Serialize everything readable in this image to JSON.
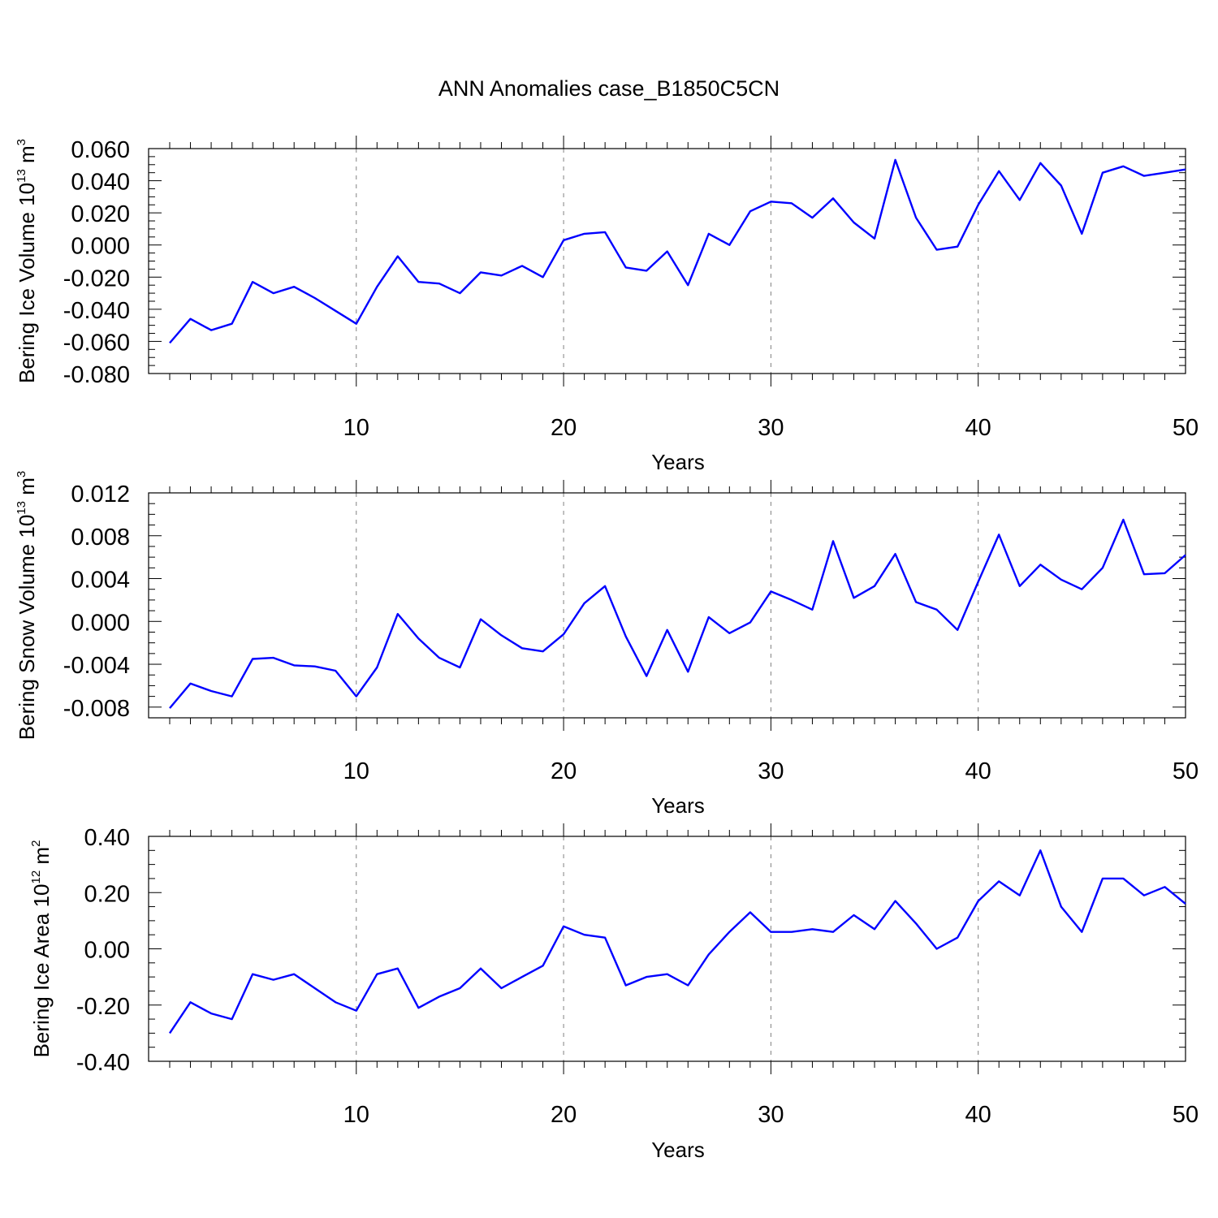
{
  "title": "ANN Anomalies case_B1850C5CN",
  "colors": {
    "line": "#0000ff",
    "axis": "#000000",
    "grid": "#808080"
  },
  "chart_data": [
    {
      "type": "line",
      "xlabel": "Years",
      "ylabel": {
        "main": "Bering Ice Volume 10",
        "sup": "13",
        "unit": " m",
        "unit_sup": "3"
      },
      "xlim": [
        1,
        50
      ],
      "ylim": [
        -0.08,
        0.06
      ],
      "x_ticks": [
        10,
        20,
        30,
        40,
        50
      ],
      "y_ticks": [
        -0.08,
        -0.06,
        -0.04,
        -0.02,
        0.0,
        0.02,
        0.04,
        0.06
      ],
      "y_tick_labels": [
        "-0.080",
        "-0.060",
        "-0.040",
        "-0.020",
        "0.000",
        "0.020",
        "0.040",
        "0.060"
      ],
      "y_minor_step": 0.005,
      "grid": "vertical dashed at major x ticks",
      "x": [
        1,
        2,
        3,
        4,
        5,
        6,
        7,
        8,
        9,
        10,
        11,
        12,
        13,
        14,
        15,
        16,
        17,
        18,
        19,
        20,
        21,
        22,
        23,
        24,
        25,
        26,
        27,
        28,
        29,
        30,
        31,
        32,
        33,
        34,
        35,
        36,
        37,
        38,
        39,
        40,
        41,
        42,
        43,
        44,
        45,
        46,
        47,
        48,
        49,
        50
      ],
      "values": [
        -0.061,
        -0.046,
        -0.053,
        -0.049,
        -0.023,
        -0.03,
        -0.026,
        -0.033,
        -0.041,
        -0.049,
        -0.026,
        -0.007,
        -0.023,
        -0.024,
        -0.03,
        -0.017,
        -0.019,
        -0.013,
        -0.02,
        0.003,
        0.007,
        0.008,
        -0.014,
        -0.016,
        -0.004,
        -0.025,
        0.007,
        0.0,
        0.021,
        0.027,
        0.026,
        0.017,
        0.029,
        0.014,
        0.004,
        0.053,
        0.017,
        -0.003,
        -0.001,
        0.025,
        0.046,
        0.028,
        0.051,
        0.037,
        0.007,
        0.045,
        0.049,
        0.043,
        0.045,
        0.047
      ]
    },
    {
      "type": "line",
      "xlabel": "Years",
      "ylabel": {
        "main": "Bering Snow Volume 10",
        "sup": "13",
        "unit": " m",
        "unit_sup": "3"
      },
      "xlim": [
        1,
        50
      ],
      "ylim": [
        -0.009,
        0.012
      ],
      "x_ticks": [
        10,
        20,
        30,
        40,
        50
      ],
      "y_ticks": [
        -0.008,
        -0.004,
        0.0,
        0.004,
        0.008,
        0.012
      ],
      "y_tick_labels": [
        "-0.008",
        "-0.004",
        "0.000",
        "0.004",
        "0.008",
        "0.012"
      ],
      "y_minor_step": 0.001,
      "grid": "vertical dashed at major x ticks",
      "x": [
        1,
        2,
        3,
        4,
        5,
        6,
        7,
        8,
        9,
        10,
        11,
        12,
        13,
        14,
        15,
        16,
        17,
        18,
        19,
        20,
        21,
        22,
        23,
        24,
        25,
        26,
        27,
        28,
        29,
        30,
        31,
        32,
        33,
        34,
        35,
        36,
        37,
        38,
        39,
        40,
        41,
        42,
        43,
        44,
        45,
        46,
        47,
        48,
        49,
        50
      ],
      "values": [
        -0.0081,
        -0.0058,
        -0.0065,
        -0.007,
        -0.0035,
        -0.0034,
        -0.0041,
        -0.0042,
        -0.0046,
        -0.007,
        -0.0043,
        0.0007,
        -0.0016,
        -0.0034,
        -0.0043,
        0.0002,
        -0.0013,
        -0.0025,
        -0.0028,
        -0.0012,
        0.0017,
        0.0033,
        -0.0014,
        -0.0051,
        -0.0008,
        -0.0047,
        0.0004,
        -0.0011,
        -0.0001,
        0.0028,
        0.002,
        0.0011,
        0.0075,
        0.0022,
        0.0033,
        0.0063,
        0.0018,
        0.0011,
        -0.0008,
        0.0037,
        0.0081,
        0.0033,
        0.0053,
        0.0039,
        0.003,
        0.005,
        0.0095,
        0.0044,
        0.0045,
        0.0062
      ]
    },
    {
      "type": "line",
      "xlabel": "Years",
      "ylabel": {
        "main": "Bering Ice Area 10",
        "sup": "12",
        "unit": " m",
        "unit_sup": "2"
      },
      "xlim": [
        1,
        50
      ],
      "ylim": [
        -0.4,
        0.4
      ],
      "x_ticks": [
        10,
        20,
        30,
        40,
        50
      ],
      "y_ticks": [
        -0.4,
        -0.2,
        0.0,
        0.2,
        0.4
      ],
      "y_tick_labels": [
        "-0.40",
        "-0.20",
        "0.00",
        "0.20",
        "0.40"
      ],
      "y_minor_step": 0.05,
      "grid": "vertical dashed at major x ticks",
      "x": [
        1,
        2,
        3,
        4,
        5,
        6,
        7,
        8,
        9,
        10,
        11,
        12,
        13,
        14,
        15,
        16,
        17,
        18,
        19,
        20,
        21,
        22,
        23,
        24,
        25,
        26,
        27,
        28,
        29,
        30,
        31,
        32,
        33,
        34,
        35,
        36,
        37,
        38,
        39,
        40,
        41,
        42,
        43,
        44,
        45,
        46,
        47,
        48,
        49,
        50
      ],
      "values": [
        -0.3,
        -0.19,
        -0.23,
        -0.25,
        -0.09,
        -0.11,
        -0.09,
        -0.14,
        -0.19,
        -0.22,
        -0.09,
        -0.07,
        -0.21,
        -0.17,
        -0.14,
        -0.07,
        -0.14,
        -0.1,
        -0.06,
        0.08,
        0.05,
        0.04,
        -0.13,
        -0.1,
        -0.09,
        -0.13,
        -0.02,
        0.06,
        0.13,
        0.06,
        0.06,
        0.07,
        0.06,
        0.12,
        0.07,
        0.17,
        0.09,
        0.0,
        0.04,
        0.17,
        0.24,
        0.19,
        0.35,
        0.15,
        0.06,
        0.25,
        0.25,
        0.19,
        0.22,
        0.16
      ]
    }
  ]
}
